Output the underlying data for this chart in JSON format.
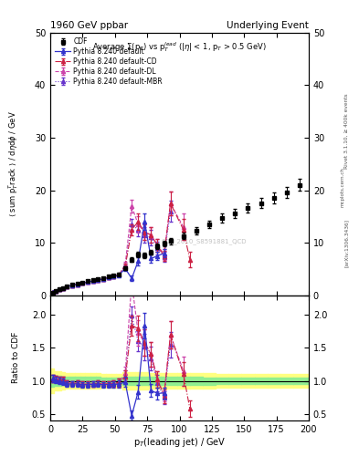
{
  "title_left": "1960 GeV ppbar",
  "title_right": "Underlying Event",
  "ratio_ylabel": "Ratio to CDF",
  "xlabel": "p_{T}(leading jet) / GeV",
  "watermark": "CDF_2010_S8591881_QCD",
  "rivet_label": "Rivet 3.1.10, >= 400k events",
  "arxiv_label": "[arXiv:1306.3436]",
  "mcplots_label": "mcplots.cern.ch",
  "cdf_x": [
    2,
    4,
    7,
    10,
    13,
    17,
    21,
    25,
    29,
    33,
    37,
    41,
    45,
    49,
    53,
    58,
    63,
    68,
    73,
    78,
    83,
    88,
    93,
    103,
    113,
    123,
    133,
    143,
    153,
    163,
    173,
    183,
    193
  ],
  "cdf_y": [
    0.55,
    0.85,
    1.1,
    1.4,
    1.7,
    2.0,
    2.2,
    2.45,
    2.65,
    2.85,
    3.05,
    3.3,
    3.55,
    3.75,
    4.0,
    5.2,
    6.8,
    7.8,
    7.6,
    8.2,
    9.3,
    9.8,
    10.3,
    11.3,
    12.3,
    13.5,
    14.7,
    15.6,
    16.6,
    17.5,
    18.5,
    19.5,
    21.0
  ],
  "cdf_yerr": [
    0.05,
    0.06,
    0.08,
    0.09,
    0.1,
    0.12,
    0.13,
    0.14,
    0.15,
    0.16,
    0.17,
    0.18,
    0.19,
    0.2,
    0.22,
    0.35,
    0.45,
    0.5,
    0.5,
    0.5,
    0.55,
    0.55,
    0.6,
    0.65,
    0.7,
    0.75,
    0.8,
    0.85,
    0.9,
    0.95,
    1.0,
    1.05,
    1.1
  ],
  "py_default_x": [
    2,
    4,
    7,
    10,
    13,
    17,
    21,
    25,
    29,
    33,
    37,
    41,
    45,
    49,
    53,
    58,
    63,
    68,
    73,
    78,
    83,
    88
  ],
  "py_default_y": [
    0.57,
    0.86,
    1.1,
    1.38,
    1.62,
    1.9,
    2.1,
    2.3,
    2.5,
    2.7,
    2.9,
    3.1,
    3.35,
    3.55,
    3.8,
    5.1,
    3.2,
    6.5,
    14.0,
    7.0,
    7.5,
    8.0
  ],
  "py_default_yerr": [
    0.03,
    0.04,
    0.05,
    0.06,
    0.07,
    0.08,
    0.09,
    0.1,
    0.11,
    0.12,
    0.13,
    0.14,
    0.15,
    0.18,
    0.22,
    0.4,
    0.5,
    0.8,
    1.5,
    0.8,
    0.8,
    0.8
  ],
  "py_cd_x": [
    2,
    4,
    7,
    10,
    13,
    17,
    21,
    25,
    29,
    33,
    37,
    41,
    45,
    49,
    53,
    58,
    63,
    68,
    73,
    78,
    83,
    88,
    93,
    103,
    108
  ],
  "py_cd_y": [
    0.57,
    0.87,
    1.12,
    1.42,
    1.65,
    1.92,
    2.12,
    2.32,
    2.52,
    2.72,
    2.93,
    3.15,
    3.38,
    3.6,
    3.9,
    5.5,
    12.5,
    14.0,
    12.0,
    11.5,
    9.5,
    7.5,
    17.5,
    12.5,
    6.8
  ],
  "py_cd_yerr": [
    0.03,
    0.04,
    0.05,
    0.06,
    0.07,
    0.08,
    0.09,
    0.1,
    0.11,
    0.12,
    0.13,
    0.14,
    0.15,
    0.18,
    0.25,
    0.5,
    1.0,
    1.5,
    1.5,
    1.5,
    1.2,
    1.0,
    2.2,
    2.0,
    1.5
  ],
  "py_dl_x": [
    2,
    4,
    7,
    10,
    13,
    17,
    21,
    25,
    29,
    33,
    37,
    41,
    45,
    49,
    53,
    58,
    63,
    68,
    73,
    78,
    83,
    88,
    93,
    103
  ],
  "py_dl_y": [
    0.57,
    0.87,
    1.12,
    1.42,
    1.65,
    1.92,
    2.12,
    2.32,
    2.52,
    2.72,
    2.93,
    3.15,
    3.38,
    3.6,
    3.9,
    5.8,
    17.0,
    13.5,
    12.0,
    11.5,
    9.5,
    7.8,
    17.5,
    13.0
  ],
  "py_dl_yerr": [
    0.03,
    0.04,
    0.05,
    0.06,
    0.07,
    0.08,
    0.09,
    0.1,
    0.11,
    0.12,
    0.13,
    0.14,
    0.15,
    0.18,
    0.25,
    0.55,
    1.2,
    1.5,
    1.5,
    1.5,
    1.2,
    1.0,
    2.2,
    2.5
  ],
  "py_mbr_x": [
    2,
    4,
    7,
    10,
    13,
    17,
    21,
    25,
    29,
    33,
    37,
    41,
    45,
    49,
    53,
    58,
    63,
    68,
    73,
    78,
    83,
    88,
    93
  ],
  "py_mbr_y": [
    0.57,
    0.87,
    1.12,
    1.42,
    1.65,
    1.92,
    2.12,
    2.32,
    2.52,
    2.72,
    2.93,
    3.15,
    3.38,
    3.6,
    3.9,
    5.5,
    13.5,
    12.5,
    11.5,
    11.0,
    9.0,
    7.3,
    16.0
  ],
  "py_mbr_yerr": [
    0.03,
    0.04,
    0.05,
    0.06,
    0.07,
    0.08,
    0.09,
    0.1,
    0.11,
    0.12,
    0.13,
    0.14,
    0.15,
    0.18,
    0.25,
    0.5,
    1.0,
    1.2,
    1.5,
    1.5,
    1.2,
    1.0,
    2.0
  ],
  "color_default": "#3333cc",
  "color_cd": "#cc2244",
  "color_dl": "#cc44aa",
  "color_mbr": "#6633cc",
  "bg_green": "#90ee90",
  "bg_yellow": "#ffff80",
  "ylim_main": [
    0,
    50
  ],
  "ylim_ratio": [
    0.4,
    2.3
  ],
  "xlim": [
    0,
    200
  ]
}
